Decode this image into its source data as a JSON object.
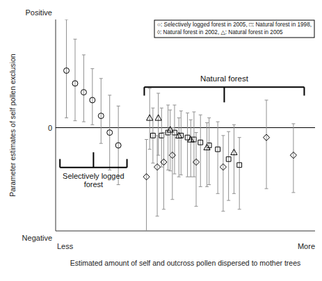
{
  "chart_data": {
    "type": "scatter",
    "xlabel": "Estimated amount of self and outcross pollen dispersed to mother trees",
    "ylabel": "Parameter estimates of self pollen exclusion",
    "annotations": [
      "Positive",
      "Negative",
      "Less",
      "More",
      "Natural forest",
      "Selectively logged\nforest",
      "○: Selectively logged forest in 2005,  □: Natural forest in 1998,",
      "◊: Natural forest in 2002,  △: Natural forest in 2005"
    ],
    "xlim": [
      0,
      24
    ],
    "ylim": [
      -1.05,
      1.1
    ],
    "yticks": [
      0
    ],
    "tick_labels": "y",
    "grid": false,
    "series": [
      {
        "marker": "circle",
        "color": "#000000",
        "x": [
          1.0,
          1.8,
          2.6,
          3.4,
          4.2,
          5.0,
          5.8
        ],
        "values": [
          0.58,
          0.45,
          0.36,
          0.28,
          0.12,
          -0.05,
          -0.18
        ],
        "yerr_low": [
          0.48,
          0.38,
          0.3,
          0.25,
          0.28,
          0.38,
          0.4
        ],
        "yerr_high": [
          0.52,
          0.45,
          0.38,
          0.32,
          0.38,
          0.38,
          0.4
        ]
      },
      {
        "marker": "square",
        "color": "#000000",
        "x": [
          9.0,
          9.8,
          10.4,
          11.0,
          11.6,
          12.2,
          12.8,
          13.4,
          14.2,
          15.0,
          16.0,
          17.0
        ],
        "values": [
          -0.08,
          -0.08,
          -0.05,
          -0.05,
          -0.08,
          -0.1,
          -0.12,
          -0.15,
          -0.18,
          -0.22,
          -0.32,
          -0.38
        ],
        "yerr_low": [
          0.28,
          0.32,
          0.38,
          0.42,
          0.4,
          0.4,
          0.38,
          0.45,
          0.4,
          0.45,
          0.42,
          0.45
        ],
        "yerr_high": [
          0.28,
          0.28,
          0.28,
          0.28,
          0.25,
          0.25,
          0.28,
          0.28,
          0.28,
          0.28,
          0.28,
          0.28
        ]
      },
      {
        "marker": "diamond",
        "color": "#000000",
        "x": [
          8.4,
          9.4,
          10.0,
          10.8,
          13.0,
          15.5,
          19.5,
          22.0
        ],
        "values": [
          -0.5,
          -0.4,
          -0.35,
          -0.28,
          -0.35,
          -0.4,
          -0.1,
          -0.28
        ],
        "yerr_low": [
          0.55,
          0.5,
          0.48,
          0.45,
          0.45,
          0.45,
          0.52,
          0.38
        ],
        "yerr_high": [
          0.38,
          0.32,
          0.3,
          0.28,
          0.3,
          0.32,
          0.38,
          0.32
        ]
      },
      {
        "marker": "triangle",
        "color": "#000000",
        "x": [
          8.7,
          9.5,
          10.6,
          11.4,
          12.5,
          14.0,
          16.5
        ],
        "values": [
          0.1,
          0.1,
          -0.02,
          -0.08,
          -0.12,
          -0.2,
          -0.25
        ],
        "yerr_low": [
          0.32,
          0.38,
          0.42,
          0.42,
          0.38,
          0.4,
          0.42
        ],
        "yerr_high": [
          0.3,
          0.25,
          0.2,
          0.18,
          0.2,
          0.25,
          0.28
        ]
      }
    ]
  }
}
